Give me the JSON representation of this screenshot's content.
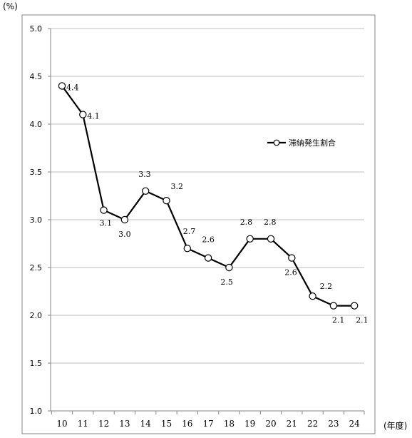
{
  "chart_data": {
    "type": "line",
    "y_unit": "(%)",
    "x_unit": "(年度)",
    "x": [
      "10",
      "11",
      "12",
      "13",
      "14",
      "15",
      "16",
      "17",
      "18",
      "19",
      "20",
      "21",
      "22",
      "23",
      "24"
    ],
    "series": [
      {
        "name": "滞納発生割合",
        "values": [
          4.4,
          4.1,
          3.1,
          3.0,
          3.3,
          3.2,
          2.7,
          2.6,
          2.5,
          2.8,
          2.8,
          2.6,
          2.2,
          2.1,
          2.1
        ],
        "labels": [
          "4.4",
          "4.1",
          "3.1",
          "3.0",
          "3.3",
          "3.2",
          "2.7",
          "2.6",
          "2.5",
          "2.8",
          "2.8",
          "2.6",
          "2.2",
          "2.1",
          "2.1"
        ]
      }
    ],
    "y_ticks": [
      "1.0",
      "1.5",
      "2.0",
      "2.5",
      "3.0",
      "3.5",
      "4.0",
      "4.5",
      "5.0"
    ],
    "ylim": [
      1.0,
      5.0
    ],
    "grid": true,
    "legend": "right",
    "colors": {
      "line": "#000000",
      "marker_fill": "#ffffff",
      "grid": "#bfbfbf",
      "axis": "#868686"
    }
  }
}
